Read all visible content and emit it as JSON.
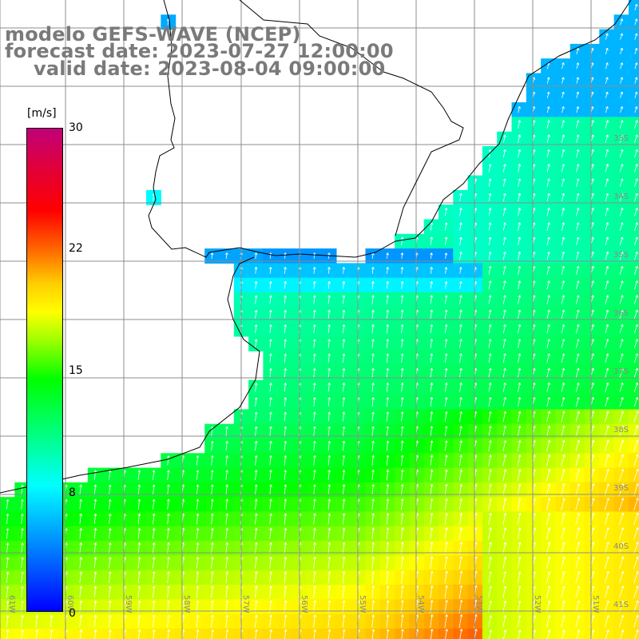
{
  "title": {
    "line1": "modelo GEFS-WAVE (NCEP)",
    "line2": "forecast date: 2023-07-27 12:00:00",
    "line3": "valid date: 2023-08-04 09:00:00"
  },
  "colorbar": {
    "units": "[m/s]",
    "ticks": [
      "30",
      "22",
      "15",
      "8",
      "0"
    ],
    "tick_values": [
      30,
      22,
      15,
      8,
      0
    ],
    "min": 0,
    "max": 30
  },
  "map": {
    "lat_labels": [
      "33S",
      "34S",
      "35S",
      "36S",
      "37S",
      "38S",
      "39S",
      "40S",
      "41S"
    ],
    "lon_labels": [
      "61W",
      "60W",
      "59W",
      "58W",
      "57W",
      "56W",
      "55W",
      "54W",
      "53W",
      "52W",
      "51W"
    ],
    "land_color": "#ffffff",
    "grid_color": "#8c8c8c",
    "coast_color": "#000000",
    "arrow_color": "#ffffff"
  }
}
